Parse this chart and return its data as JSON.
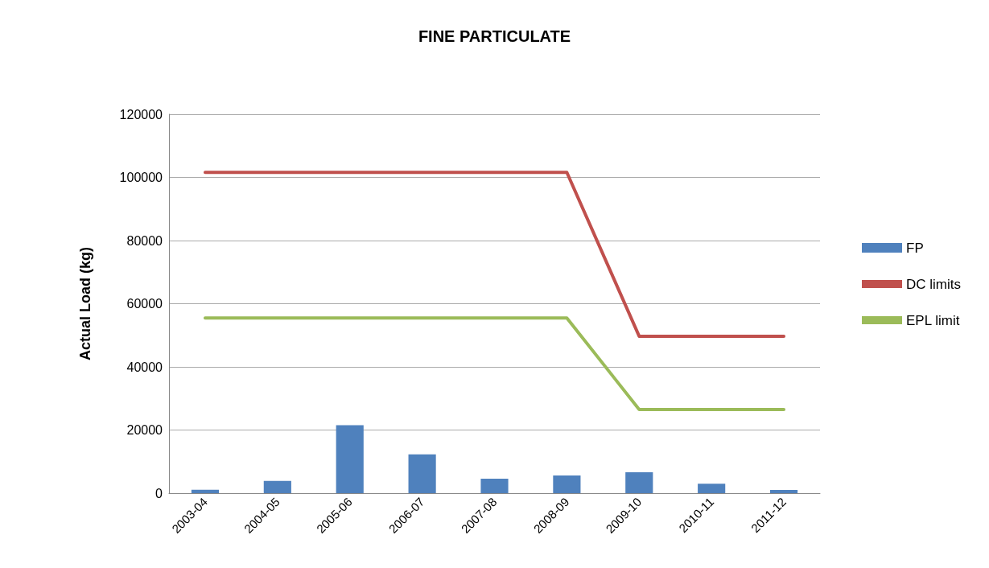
{
  "chart_data": {
    "type": "bar",
    "title": "FINE PARTICULATE",
    "ylabel": "Actual Load (kg)",
    "categories": [
      "2003-04",
      "2004-05",
      "2005-06",
      "2006-07",
      "2007-08",
      "2008-09",
      "2009-10",
      "2010-11",
      "2011-12"
    ],
    "series": [
      {
        "name": "FP",
        "color": "#4f81bd",
        "values": [
          1100,
          3900,
          21500,
          12300,
          4600,
          5600,
          6600,
          3000,
          1000
        ]
      },
      {
        "name": "DC limits",
        "type": "line",
        "color": "#c0504d",
        "values": [
          101600,
          101600,
          101600,
          101600,
          101600,
          101600,
          49700,
          49700,
          49700
        ]
      },
      {
        "name": "EPL limit",
        "type": "line",
        "color": "#9bbb59",
        "values": [
          55500,
          55500,
          55500,
          55500,
          55500,
          55500,
          26500,
          26500,
          26500
        ]
      }
    ],
    "ylim": [
      0,
      120000
    ],
    "yticks": [
      0,
      20000,
      40000,
      60000,
      80000,
      100000,
      120000
    ],
    "grid": "y",
    "legend": "right",
    "marker": "none"
  }
}
